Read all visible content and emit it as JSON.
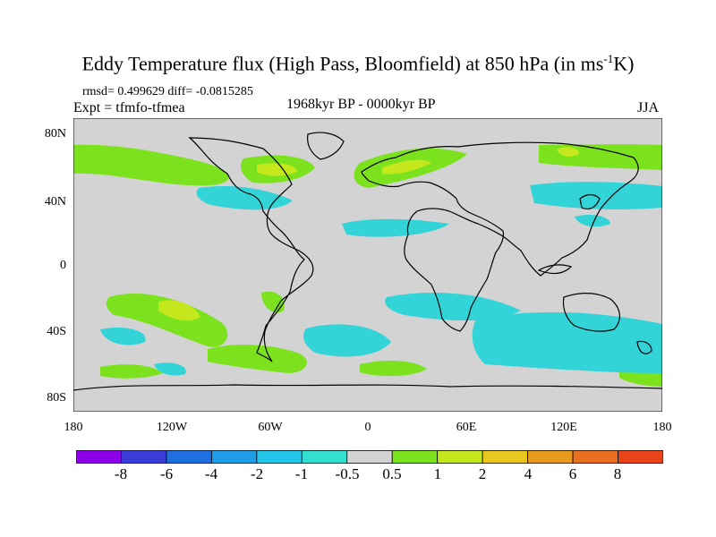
{
  "title": "Eddy Temperature flux (High Pass, Bloomfield) at 850 hPa (in ms",
  "title_sup": "-1",
  "title_end": "K)",
  "stats": "rmsd= 0.499629 diff= -0.0815285",
  "experiment": "Expt = tfmfo-tfmea",
  "period": "1968kyr BP - 0000kyr BP",
  "season": "JJA",
  "axes": {
    "y_ticks": [
      "80N",
      "40N",
      "0",
      "40S",
      "80S"
    ],
    "x_ticks": [
      "180",
      "120W",
      "60W",
      "0",
      "60E",
      "120E",
      "180"
    ]
  },
  "colorbar": {
    "colors": [
      "#8b00e8",
      "#3b3bd8",
      "#1f6fe0",
      "#1e9de6",
      "#23c5e8",
      "#33e0d0",
      "#d3d3d3",
      "#7de21e",
      "#c5e81c",
      "#e8c71e",
      "#e89a1e",
      "#e8701e",
      "#e84418"
    ],
    "labels": [
      "-8",
      "-6",
      "-4",
      "-2",
      "-1",
      "-0.5",
      "0.5",
      "1",
      "2",
      "4",
      "6",
      "8"
    ]
  },
  "colors": {
    "land_ocean_neutral": "#d3d3d3",
    "negative_fill": "#33d4d8",
    "positive_fill": "#7de21e",
    "strong_positive_fill": "#c5e81c"
  }
}
